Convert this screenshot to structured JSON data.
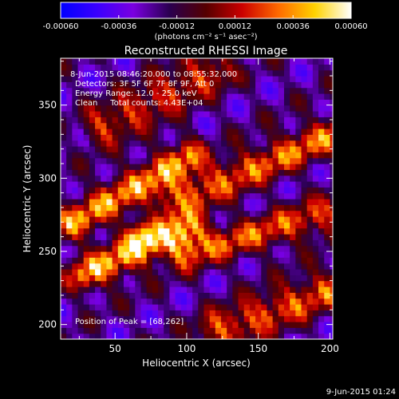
{
  "colorbar": {
    "ticks": [
      "-0.00060",
      "-0.00036",
      "-0.00012",
      "0.00012",
      "0.00036",
      "0.00060"
    ],
    "tick_values": [
      -0.0006,
      -0.00036,
      -0.00012,
      0.00012,
      0.00036,
      0.0006
    ],
    "unit_label": "(photons cm⁻² s⁻¹ asec⁻²)",
    "range": [
      -0.0006,
      0.0006
    ],
    "colors": [
      "#0000ff",
      "#3a00ff",
      "#7a00e0",
      "#2a0050",
      "#550000",
      "#cc0000",
      "#ff6a00",
      "#ffd200",
      "#ffffff"
    ]
  },
  "chart_data": {
    "type": "heatmap",
    "title": "Reconstructed RHESSI Image",
    "xlabel": "Heliocentric X (arcsec)",
    "ylabel": "Heliocentric Y (arcsec)",
    "xlim": [
      12,
      202
    ],
    "ylim": [
      190,
      382
    ],
    "xticks": [
      50,
      100,
      150,
      200
    ],
    "yticks": [
      200,
      250,
      300,
      350
    ],
    "xtick_labels": [
      "50",
      "100",
      "150",
      "200"
    ],
    "ytick_labels": [
      "200",
      "250",
      "300",
      "350"
    ],
    "annotations": [
      "8-Jun-2015 08:46:20.000 to 08:55:32.000",
      "Detectors: 3F 5F 6F 7F 8F 9F, Att 0",
      "Energy Range: 12.0 - 25.0 keV",
      "Clean     Total counts: 4.43E+04"
    ],
    "peak_label": "Position of Peak = [68,262]",
    "peak": [
      68,
      262
    ],
    "bands": [
      {
        "x0": 20,
        "y0": 270,
        "x1": 100,
        "y1": 315,
        "value": 0.0005
      },
      {
        "x0": 90,
        "y0": 285,
        "x1": 200,
        "y1": 330,
        "value": 0.00045
      },
      {
        "x0": 40,
        "y0": 335,
        "x1": 120,
        "y1": 375,
        "value": 0.0004
      },
      {
        "x0": 30,
        "y0": 235,
        "x1": 100,
        "y1": 265,
        "value": 0.00055
      },
      {
        "x0": 100,
        "y0": 250,
        "x1": 200,
        "y1": 275,
        "value": 0.0004
      },
      {
        "x0": 120,
        "y0": 195,
        "x1": 200,
        "y1": 225,
        "value": 0.00045
      }
    ],
    "grid": false
  },
  "footer": {
    "timestamp": "9-Jun-2015 01:24"
  }
}
